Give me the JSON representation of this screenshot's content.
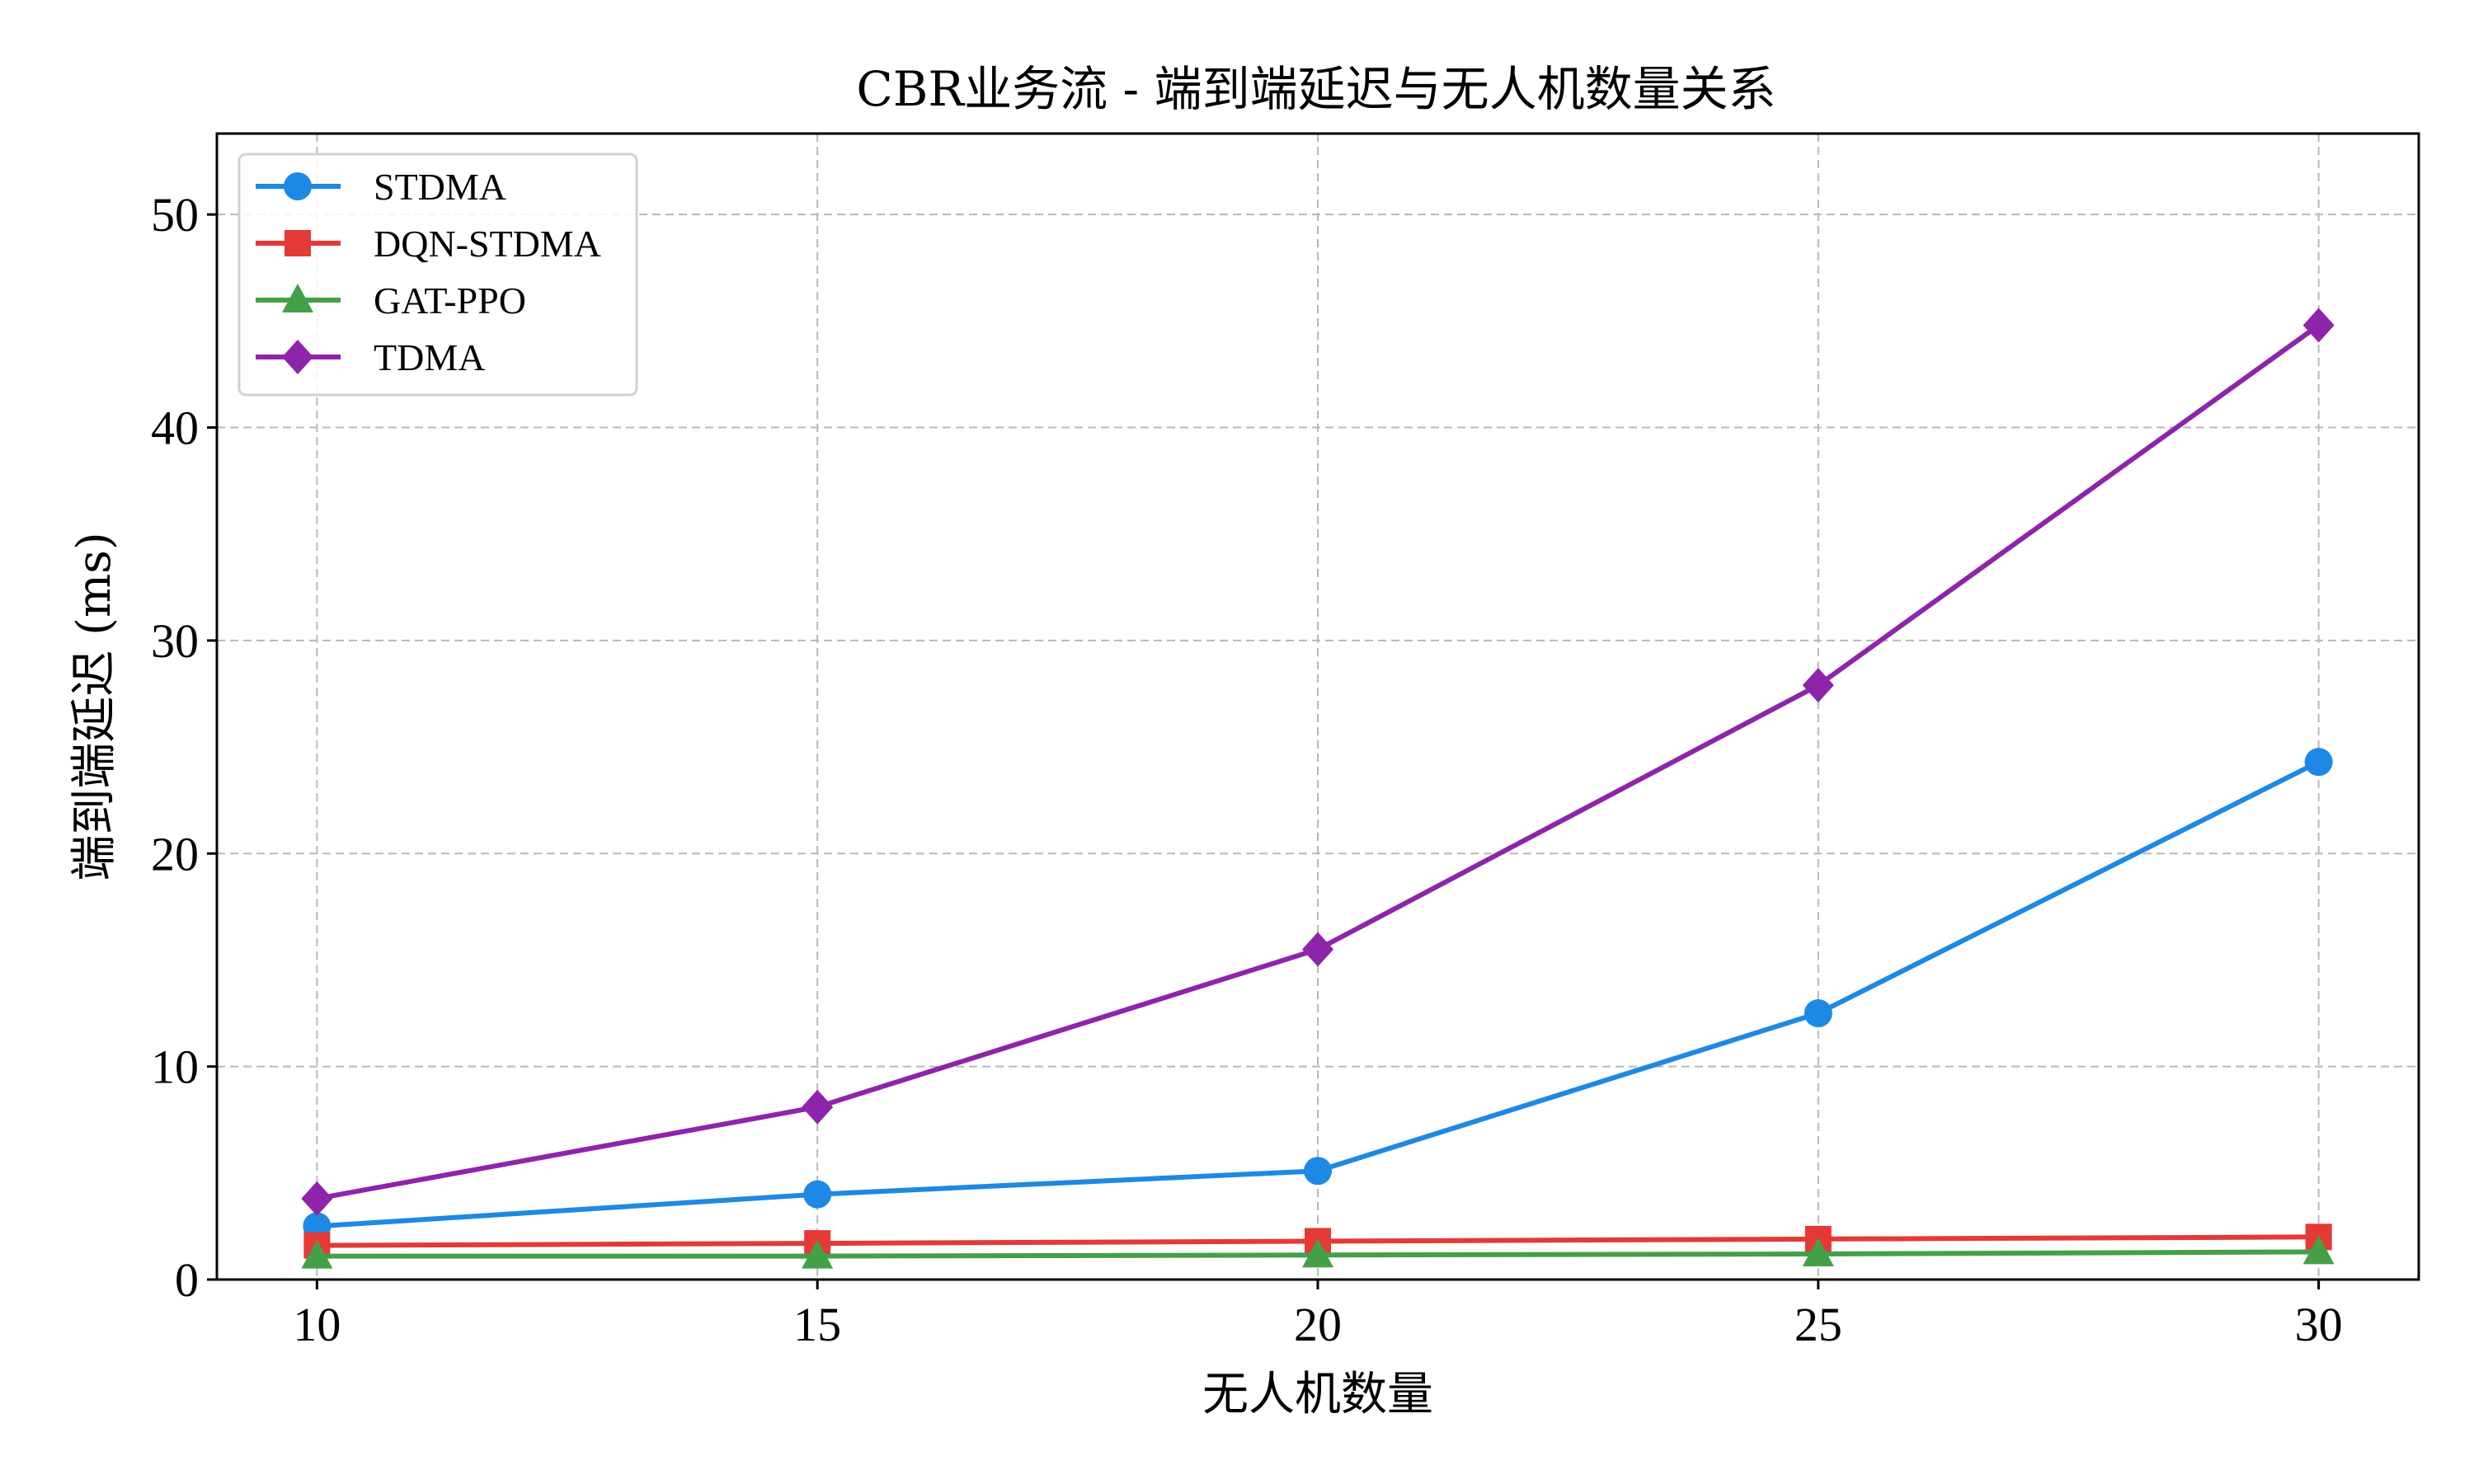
{
  "chart_data": {
    "type": "line",
    "title": "CBR业务流 - 端到端延迟与无人机数量关系",
    "xlabel": "无人机数量",
    "ylabel": "端到端延迟 (ms)",
    "x": [
      10,
      15,
      20,
      25,
      30
    ],
    "xticks": [
      10,
      15,
      20,
      25,
      30
    ],
    "yticks": [
      0,
      10,
      20,
      30,
      40,
      50
    ],
    "xlim": [
      9,
      31
    ],
    "ylim": [
      0,
      53.8
    ],
    "grid": true,
    "legend_position": "top-left",
    "series": [
      {
        "name": "STDMA",
        "color": "#1e88e5",
        "marker": "circle",
        "values": [
          2.5,
          4.0,
          5.1,
          12.5,
          24.3
        ]
      },
      {
        "name": "DQN-STDMA",
        "color": "#e53935",
        "marker": "square",
        "values": [
          1.6,
          1.7,
          1.8,
          1.9,
          2.0
        ]
      },
      {
        "name": "GAT-PPO",
        "color": "#43a047",
        "marker": "triangle",
        "values": [
          1.1,
          1.1,
          1.15,
          1.2,
          1.3
        ]
      },
      {
        "name": "TDMA",
        "color": "#8e24aa",
        "marker": "diamond",
        "values": [
          3.8,
          8.1,
          15.5,
          27.9,
          44.8
        ]
      }
    ]
  }
}
